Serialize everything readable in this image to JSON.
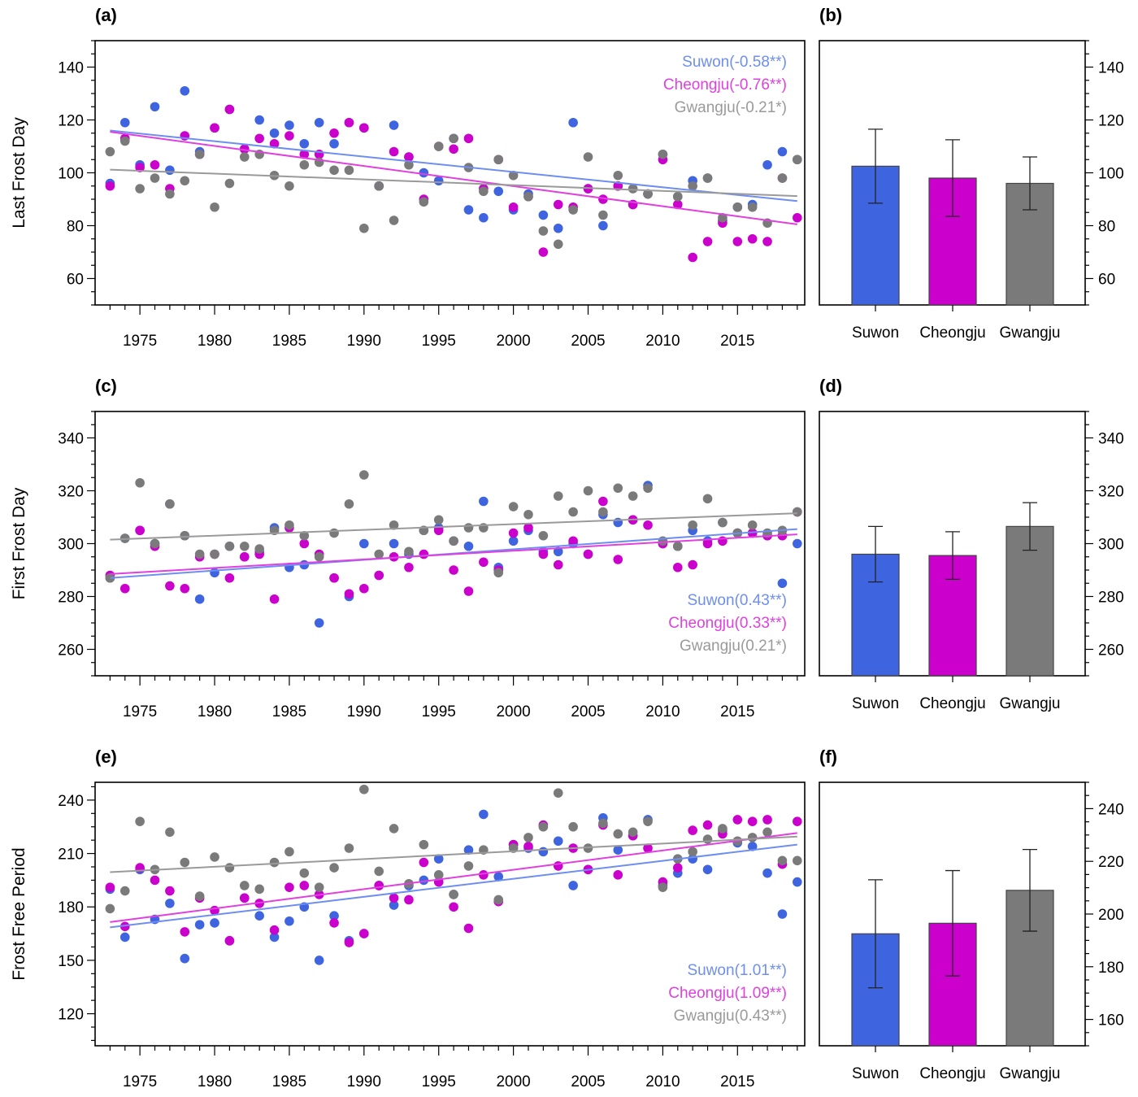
{
  "colors": {
    "Suwon": "#3e64e0",
    "Cheongju": "#cc00cc",
    "Gwangju": "#7a7a7a"
  },
  "line_colors": {
    "Suwon": "#6e8ef0",
    "Cheongju": "#e040e0",
    "Gwangju": "#9a9a9a"
  },
  "chart_data": [
    {
      "id": "a",
      "panel_label": "(a)",
      "type": "scatter",
      "ylabel": "Last Frost Day",
      "xlim": [
        1972,
        2019.5
      ],
      "ylim": [
        50,
        150
      ],
      "yticks": [
        60,
        80,
        100,
        120,
        140
      ],
      "xticks": [
        1975,
        1980,
        1985,
        1990,
        1995,
        2000,
        2005,
        2010,
        2015
      ],
      "legend_position": "top-right",
      "years": [
        1973,
        1974,
        1975,
        1976,
        1977,
        1978,
        1979,
        1980,
        1981,
        1982,
        1983,
        1984,
        1985,
        1986,
        1987,
        1988,
        1989,
        1990,
        1991,
        1992,
        1993,
        1994,
        1995,
        1996,
        1997,
        1998,
        1999,
        2000,
        2001,
        2002,
        2003,
        2004,
        2005,
        2006,
        2007,
        2008,
        2009,
        2010,
        2011,
        2012,
        2013,
        2014,
        2015,
        2016,
        2017,
        2018,
        2019
      ],
      "series": [
        {
          "name": "Suwon",
          "legend": "Suwon(-0.58**)",
          "values": [
            96,
            119,
            103,
            125,
            101,
            131,
            108,
            117,
            124,
            109,
            120,
            115,
            118,
            111,
            119,
            111,
            119,
            117,
            95,
            118,
            106,
            100,
            97,
            113,
            86,
            83,
            93,
            86,
            92,
            84,
            79,
            119,
            94,
            80,
            95,
            88,
            92,
            107,
            91,
            97,
            98,
            82,
            87,
            88,
            103,
            108,
            105
          ],
          "trend": [
            116.0,
            89.3
          ]
        },
        {
          "name": "Cheongju",
          "legend": "Cheongju(-0.76**)",
          "values": [
            95,
            113,
            102,
            103,
            94,
            114,
            107,
            117,
            124,
            109,
            113,
            111,
            114,
            107,
            107,
            115,
            119,
            117,
            95,
            108,
            106,
            90,
            110,
            109,
            113,
            94,
            105,
            87,
            91,
            70,
            88,
            87,
            94,
            90,
            95,
            88,
            92,
            105,
            88,
            68,
            74,
            81,
            74,
            75,
            74,
            98,
            83
          ],
          "trend": [
            115.5,
            80.5
          ]
        },
        {
          "name": "Gwangju",
          "legend": "Gwangju(-0.21*)",
          "values": [
            108,
            112,
            94,
            98,
            92,
            97,
            107,
            87,
            96,
            106,
            107,
            99,
            95,
            103,
            104,
            101,
            101,
            79,
            95,
            82,
            103,
            89,
            110,
            113,
            102,
            93,
            105,
            99,
            91,
            78,
            73,
            86,
            106,
            84,
            99,
            94,
            92,
            107,
            91,
            95,
            98,
            83,
            87,
            87,
            81,
            98,
            105
          ],
          "trend": [
            101.2,
            91.2
          ]
        }
      ]
    },
    {
      "id": "b",
      "panel_label": "(b)",
      "type": "bar",
      "ylim": [
        50,
        150
      ],
      "yticks": [
        60,
        80,
        100,
        120,
        140
      ],
      "categories": [
        "Suwon",
        "Cheongju",
        "Gwangju"
      ],
      "values": [
        102.5,
        98.0,
        96.0
      ],
      "errors": [
        14.0,
        14.5,
        10.0
      ]
    },
    {
      "id": "c",
      "panel_label": "(c)",
      "type": "scatter",
      "ylabel": "First Frost Day",
      "xlim": [
        1972,
        2019.5
      ],
      "ylim": [
        250,
        350
      ],
      "yticks": [
        260,
        280,
        300,
        320,
        340
      ],
      "xticks": [
        1975,
        1980,
        1985,
        1990,
        1995,
        2000,
        2005,
        2010,
        2015
      ],
      "legend_position": "bottom-right",
      "years": [
        1973,
        1974,
        1975,
        1976,
        1977,
        1978,
        1979,
        1980,
        1981,
        1982,
        1983,
        1984,
        1985,
        1986,
        1987,
        1988,
        1989,
        1990,
        1991,
        1992,
        1993,
        1994,
        1995,
        1996,
        1997,
        1998,
        1999,
        2000,
        2001,
        2002,
        2003,
        2004,
        2005,
        2006,
        2007,
        2008,
        2009,
        2010,
        2011,
        2012,
        2013,
        2014,
        2015,
        2016,
        2017,
        2018,
        2019
      ],
      "series": [
        {
          "name": "Suwon",
          "legend": "Suwon(0.43**)",
          "values": [
            287,
            302,
            305,
            300,
            315,
            303,
            279,
            289,
            299,
            295,
            297,
            306,
            291,
            292,
            270,
            287,
            280,
            300,
            288,
            300,
            296,
            305,
            306,
            301,
            299,
            316,
            291,
            301,
            305,
            297,
            297,
            300,
            296,
            311,
            308,
            309,
            322,
            300,
            299,
            305,
            301,
            308,
            304,
            304,
            303,
            285,
            300
          ],
          "trend": [
            287.0,
            305.5
          ]
        },
        {
          "name": "Cheongju",
          "legend": "Cheongju(0.33**)",
          "values": [
            288,
            283,
            305,
            299,
            284,
            283,
            295,
            296,
            287,
            295,
            296,
            279,
            306,
            300,
            296,
            287,
            281,
            283,
            288,
            295,
            291,
            296,
            305,
            290,
            282,
            293,
            290,
            304,
            306,
            296,
            292,
            301,
            296,
            316,
            294,
            309,
            307,
            300,
            291,
            292,
            300,
            301,
            304,
            304,
            303,
            303,
            312
          ],
          "trend": [
            288.5,
            303.5
          ]
        },
        {
          "name": "Gwangju",
          "legend": "Gwangju(0.21*)",
          "values": [
            287,
            302,
            323,
            300,
            315,
            303,
            296,
            296,
            299,
            299,
            298,
            305,
            307,
            303,
            295,
            304,
            315,
            326,
            296,
            307,
            297,
            305,
            309,
            301,
            306,
            306,
            289,
            314,
            311,
            303,
            318,
            312,
            320,
            312,
            321,
            318,
            321,
            301,
            299,
            307,
            317,
            308,
            304,
            307,
            304,
            305,
            312
          ],
          "trend": [
            301.5,
            311.5
          ]
        }
      ]
    },
    {
      "id": "d",
      "panel_label": "(d)",
      "type": "bar",
      "ylim": [
        250,
        350
      ],
      "yticks": [
        260,
        280,
        300,
        320,
        340
      ],
      "categories": [
        "Suwon",
        "Cheongju",
        "Gwangju"
      ],
      "values": [
        296.0,
        295.5,
        306.5
      ],
      "errors": [
        10.5,
        9.0,
        9.0
      ]
    },
    {
      "id": "e",
      "panel_label": "(e)",
      "type": "scatter",
      "ylabel": "Frost Free Period",
      "xlim": [
        1972,
        2019.5
      ],
      "ylim": [
        102,
        250
      ],
      "yticks": [
        120,
        150,
        180,
        210,
        240
      ],
      "xticks": [
        1975,
        1980,
        1985,
        1990,
        1995,
        2000,
        2005,
        2010,
        2015
      ],
      "legend_position": "bottom-right",
      "years": [
        1973,
        1974,
        1975,
        1976,
        1977,
        1978,
        1979,
        1980,
        1981,
        1982,
        1983,
        1984,
        1985,
        1986,
        1987,
        1988,
        1989,
        1990,
        1991,
        1992,
        1993,
        1994,
        1995,
        1996,
        1997,
        1998,
        1999,
        2000,
        2001,
        2002,
        2003,
        2004,
        2005,
        2006,
        2007,
        2008,
        2009,
        2010,
        2011,
        2012,
        2013,
        2014,
        2015,
        2016,
        2017,
        2018,
        2019
      ],
      "series": [
        {
          "name": "Suwon",
          "legend": "Suwon(1.01**)",
          "values": [
            190,
            163,
            201,
            173,
            182,
            151,
            170,
            171,
            161,
            185,
            175,
            163,
            172,
            180,
            150,
            175,
            161,
            165,
            192,
            181,
            192,
            195,
            207,
            187,
            212,
            232,
            197,
            215,
            213,
            211,
            217,
            192,
            201,
            230,
            212,
            220,
            229,
            192,
            199,
            207,
            201,
            223,
            216,
            214,
            199,
            176,
            194
          ],
          "trend": [
            168.5,
            215.0
          ]
        },
        {
          "name": "Cheongju",
          "legend": "Cheongju(1.09**)",
          "values": [
            191,
            169,
            202,
            195,
            189,
            166,
            185,
            178,
            161,
            185,
            182,
            167,
            191,
            192,
            187,
            171,
            160,
            165,
            192,
            185,
            184,
            205,
            194,
            180,
            168,
            198,
            183,
            215,
            214,
            226,
            203,
            213,
            201,
            226,
            198,
            220,
            213,
            194,
            202,
            223,
            226,
            221,
            229,
            228,
            229,
            204,
            228
          ],
          "trend": [
            171.5,
            221.5
          ]
        },
        {
          "name": "Gwangju",
          "legend": "Gwangju(0.43**)",
          "values": [
            179,
            189,
            228,
            201,
            222,
            205,
            186,
            208,
            202,
            192,
            190,
            205,
            211,
            199,
            191,
            202,
            213,
            246,
            200,
            224,
            193,
            215,
            198,
            187,
            203,
            212,
            184,
            213,
            219,
            225,
            244,
            225,
            213,
            227,
            221,
            222,
            228,
            191,
            207,
            211,
            218,
            224,
            217,
            219,
            222,
            206,
            206
          ],
          "trend": [
            199.5,
            219.5
          ]
        }
      ]
    },
    {
      "id": "f",
      "panel_label": "(f)",
      "type": "bar",
      "ylim": [
        150,
        250
      ],
      "yticks": [
        160,
        180,
        200,
        220,
        240
      ],
      "categories": [
        "Suwon",
        "Cheongju",
        "Gwangju"
      ],
      "values": [
        192.5,
        196.5,
        209.0
      ],
      "errors": [
        20.5,
        20.0,
        15.5
      ]
    }
  ]
}
